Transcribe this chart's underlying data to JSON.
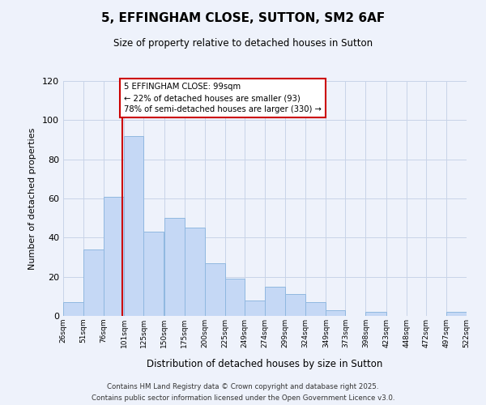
{
  "title": "5, EFFINGHAM CLOSE, SUTTON, SM2 6AF",
  "subtitle": "Size of property relative to detached houses in Sutton",
  "xlabel": "Distribution of detached houses by size in Sutton",
  "ylabel": "Number of detached properties",
  "background_color": "#eef2fb",
  "bar_color": "#c5d8f5",
  "bar_edge_color": "#90b8e0",
  "grid_color": "#c8d4e8",
  "vline_value": 99,
  "vline_color": "#cc0000",
  "annotation_line1": "5 EFFINGHAM CLOSE: 99sqm",
  "annotation_line2": "← 22% of detached houses are smaller (93)",
  "annotation_line3": "78% of semi-detached houses are larger (330) →",
  "annotation_box_color": "#ffffff",
  "annotation_box_edge": "#cc0000",
  "bins": [
    26,
    51,
    76,
    101,
    125,
    150,
    175,
    200,
    225,
    249,
    274,
    299,
    324,
    349,
    373,
    398,
    423,
    448,
    472,
    497,
    522
  ],
  "counts": [
    7,
    34,
    61,
    92,
    43,
    50,
    45,
    27,
    19,
    8,
    15,
    11,
    7,
    3,
    0,
    2,
    0,
    0,
    0,
    2
  ],
  "ylim": [
    0,
    120
  ],
  "yticks": [
    0,
    20,
    40,
    60,
    80,
    100,
    120
  ],
  "footnote1": "Contains HM Land Registry data © Crown copyright and database right 2025.",
  "footnote2": "Contains public sector information licensed under the Open Government Licence v3.0."
}
